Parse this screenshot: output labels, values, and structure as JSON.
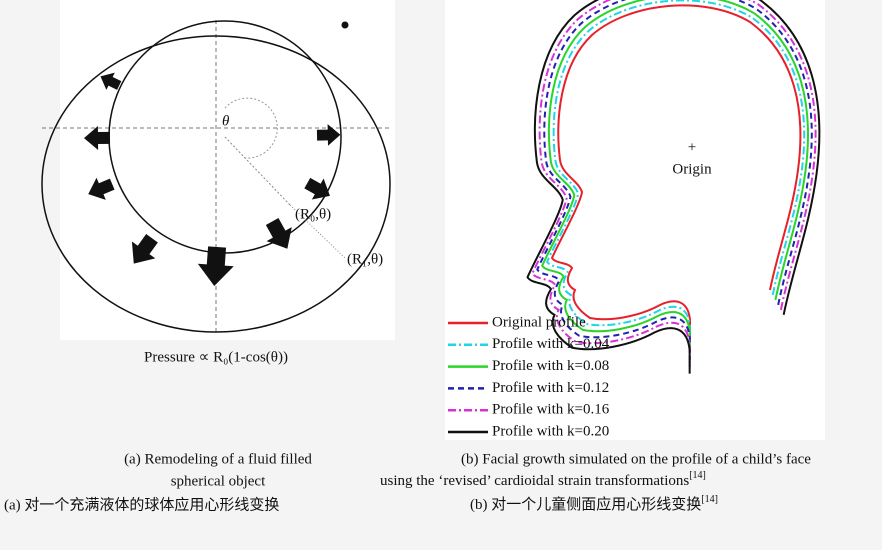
{
  "panel_a": {
    "theta_label": "θ",
    "point_r0": "(R₀,θ)",
    "point_r1": "(R₁,θ)",
    "formula": "Pressure ∝ R₀(1-cos(θ))"
  },
  "panel_b": {
    "origin_label": "Origin",
    "legend": [
      {
        "label": "Original profile",
        "color": "#e8202a",
        "style": "solid"
      },
      {
        "label": "Profile with k=0.04",
        "color": "#1fd6e6",
        "style": "dash-dot"
      },
      {
        "label": "Profile with k=0.08",
        "color": "#2ad42a",
        "style": "solid"
      },
      {
        "label": "Profile with k=0.12",
        "color": "#2222b0",
        "style": "dashed"
      },
      {
        "label": "Profile with k=0.16",
        "color": "#d633d6",
        "style": "dash-dot"
      },
      {
        "label": "Profile with k=0.20",
        "color": "#111111",
        "style": "solid"
      }
    ]
  },
  "captions": {
    "a_en_line1": "(a) Remodeling of a fluid filled",
    "a_en_line2": "spherical object",
    "a_zh": "(a) 对一个充满液体的球体应用心形线变换",
    "b_en_line1": "(b) Facial growth simulated on the profile of a child’s face",
    "b_en_line2": "using the ‘revised’ cardioidal strain transformations",
    "b_ref": "[14]",
    "b_zh": "(b) 对一个儿童侧面应用心形线变换",
    "b_zh_ref": "[14]"
  }
}
